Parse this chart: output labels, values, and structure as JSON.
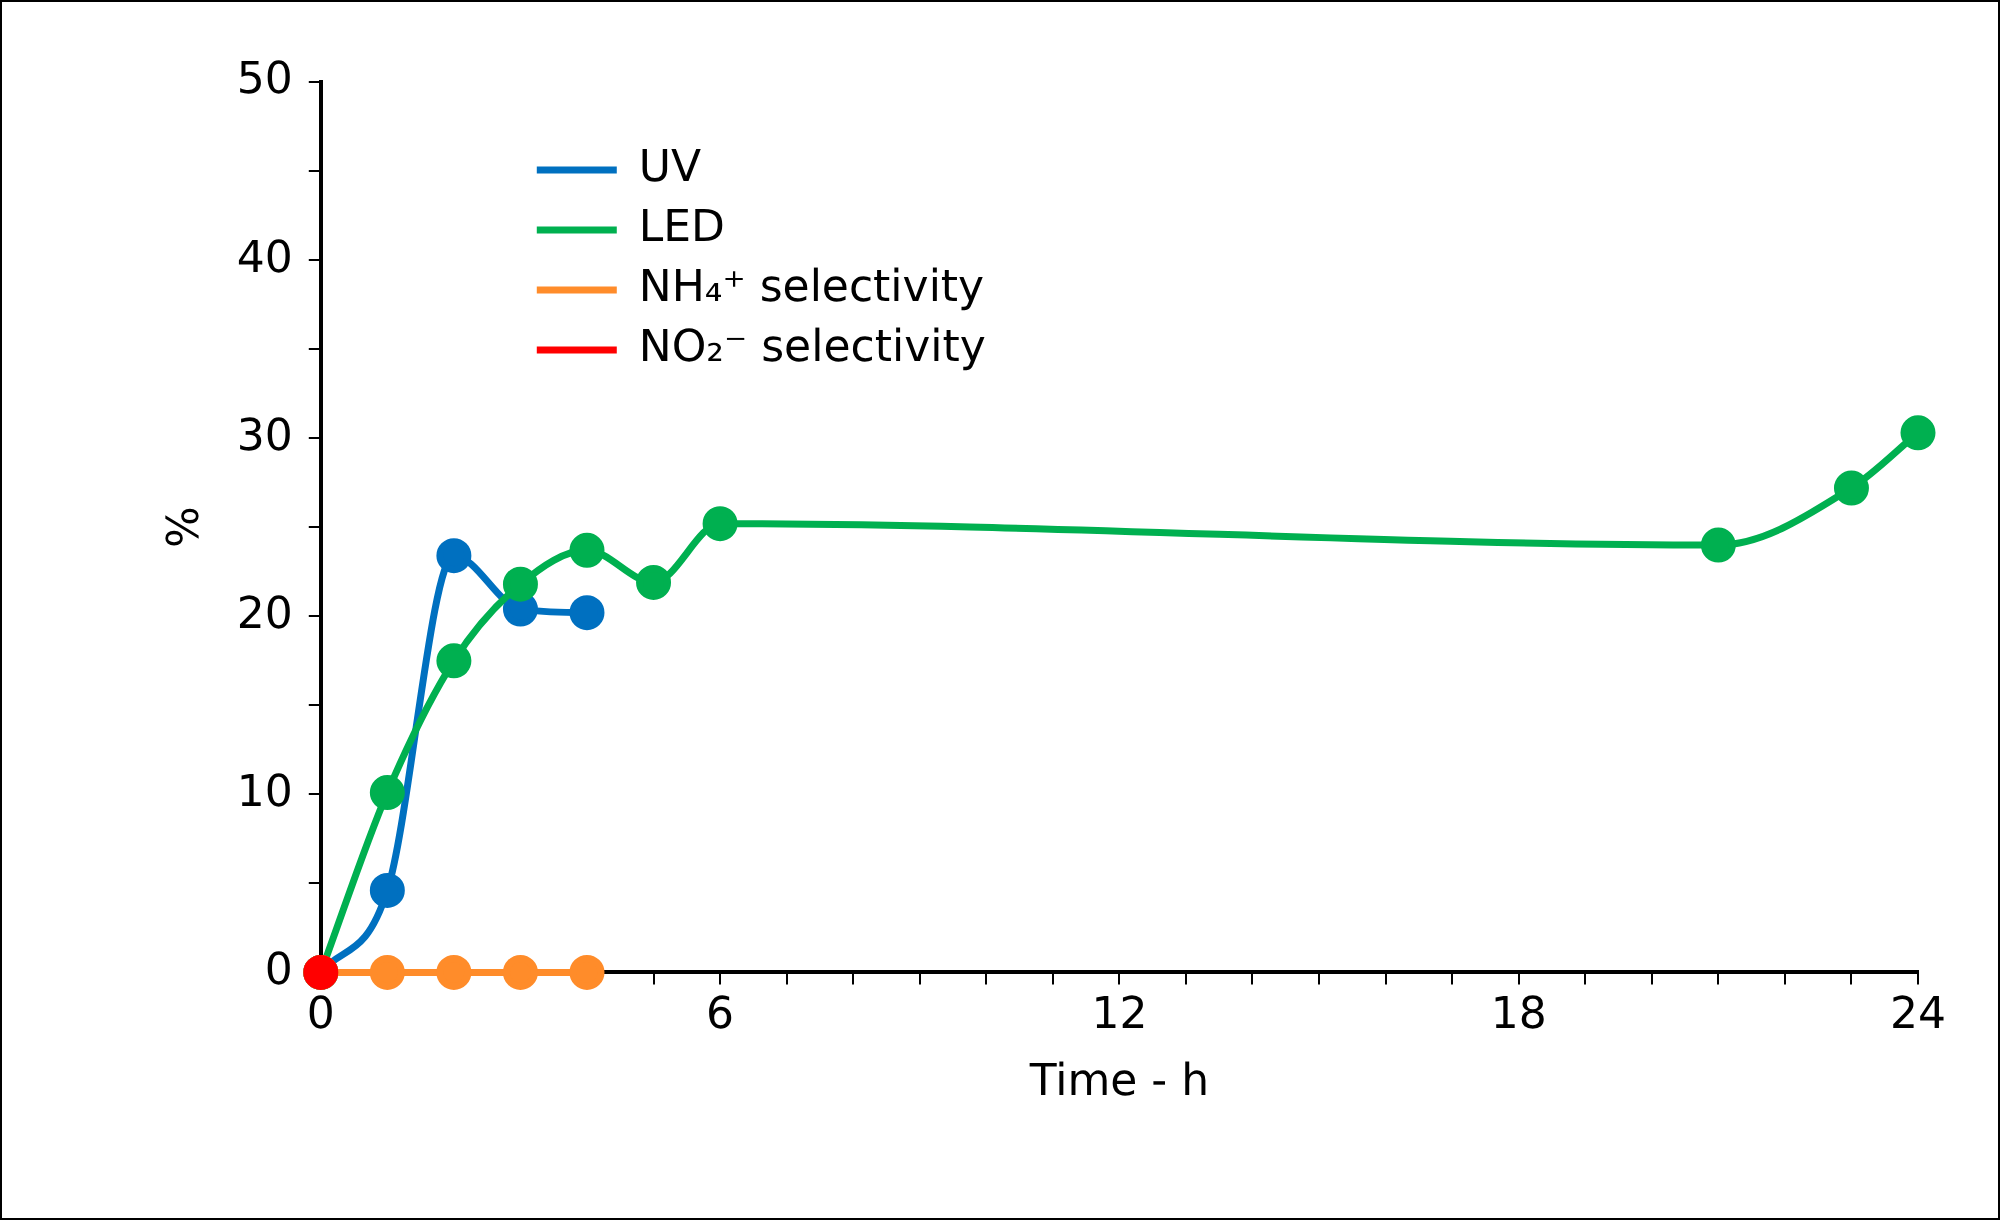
{
  "chart_data": {
    "type": "line",
    "xlabel": "Time - h",
    "ylabel": "%",
    "xlim": [
      0,
      24
    ],
    "xticks": [
      0,
      {
        "value": 1,
        "label": null
      },
      {
        "value": 2,
        "label": null
      },
      {
        "value": 3,
        "label": null
      },
      {
        "value": 4,
        "label": null
      },
      {
        "value": 5,
        "label": null
      },
      6,
      {
        "value": 7,
        "label": null
      },
      {
        "value": 8,
        "label": null
      },
      {
        "value": 9,
        "label": null
      },
      {
        "value": 10,
        "label": null
      },
      {
        "value": 11,
        "label": null
      },
      12,
      {
        "value": 13,
        "label": null
      },
      {
        "value": 14,
        "label": null
      },
      {
        "value": 15,
        "label": null
      },
      {
        "value": 16,
        "label": null
      },
      {
        "value": 17,
        "label": null
      },
      18,
      {
        "value": 19,
        "label": null
      },
      {
        "value": 20,
        "label": null
      },
      {
        "value": 21,
        "label": null
      },
      {
        "value": 22,
        "label": null
      },
      {
        "value": 23,
        "label": null
      },
      24
    ],
    "ylim": [
      0,
      50
    ],
    "yticks": [
      0,
      {
        "value": 5,
        "label": null
      },
      10,
      {
        "value": 15,
        "label": null
      },
      20,
      {
        "value": 25,
        "label": null
      },
      30,
      {
        "value": 35,
        "label": null
      },
      40,
      {
        "value": 45,
        "label": null
      },
      50
    ],
    "grid": false,
    "legend": "top left",
    "marker": "circle",
    "line_style": "solid",
    "series": [
      {
        "name": "UV",
        "color": "#0070c0",
        "x": [
          0,
          1,
          2,
          3,
          4
        ],
        "values": [
          0,
          4.6,
          23.4,
          20.4,
          20.2
        ]
      },
      {
        "name": "LED",
        "color": "#00b050",
        "x": [
          0,
          1,
          2,
          3,
          4,
          5,
          6,
          21,
          23,
          24
        ],
        "values": [
          0,
          10.1,
          17.5,
          21.8,
          23.7,
          21.9,
          25.2,
          24.0,
          27.2,
          30.3
        ]
      },
      {
        "name": "NH₄⁺ selectivity",
        "color": "#ff8c2a",
        "x": [
          0,
          1,
          2,
          3,
          4
        ],
        "values": [
          0,
          0,
          0,
          0,
          0
        ]
      },
      {
        "name": "NO₂⁻ selectivity",
        "color": "#ff0000",
        "x": [
          0
        ],
        "values": [
          0
        ]
      }
    ]
  }
}
